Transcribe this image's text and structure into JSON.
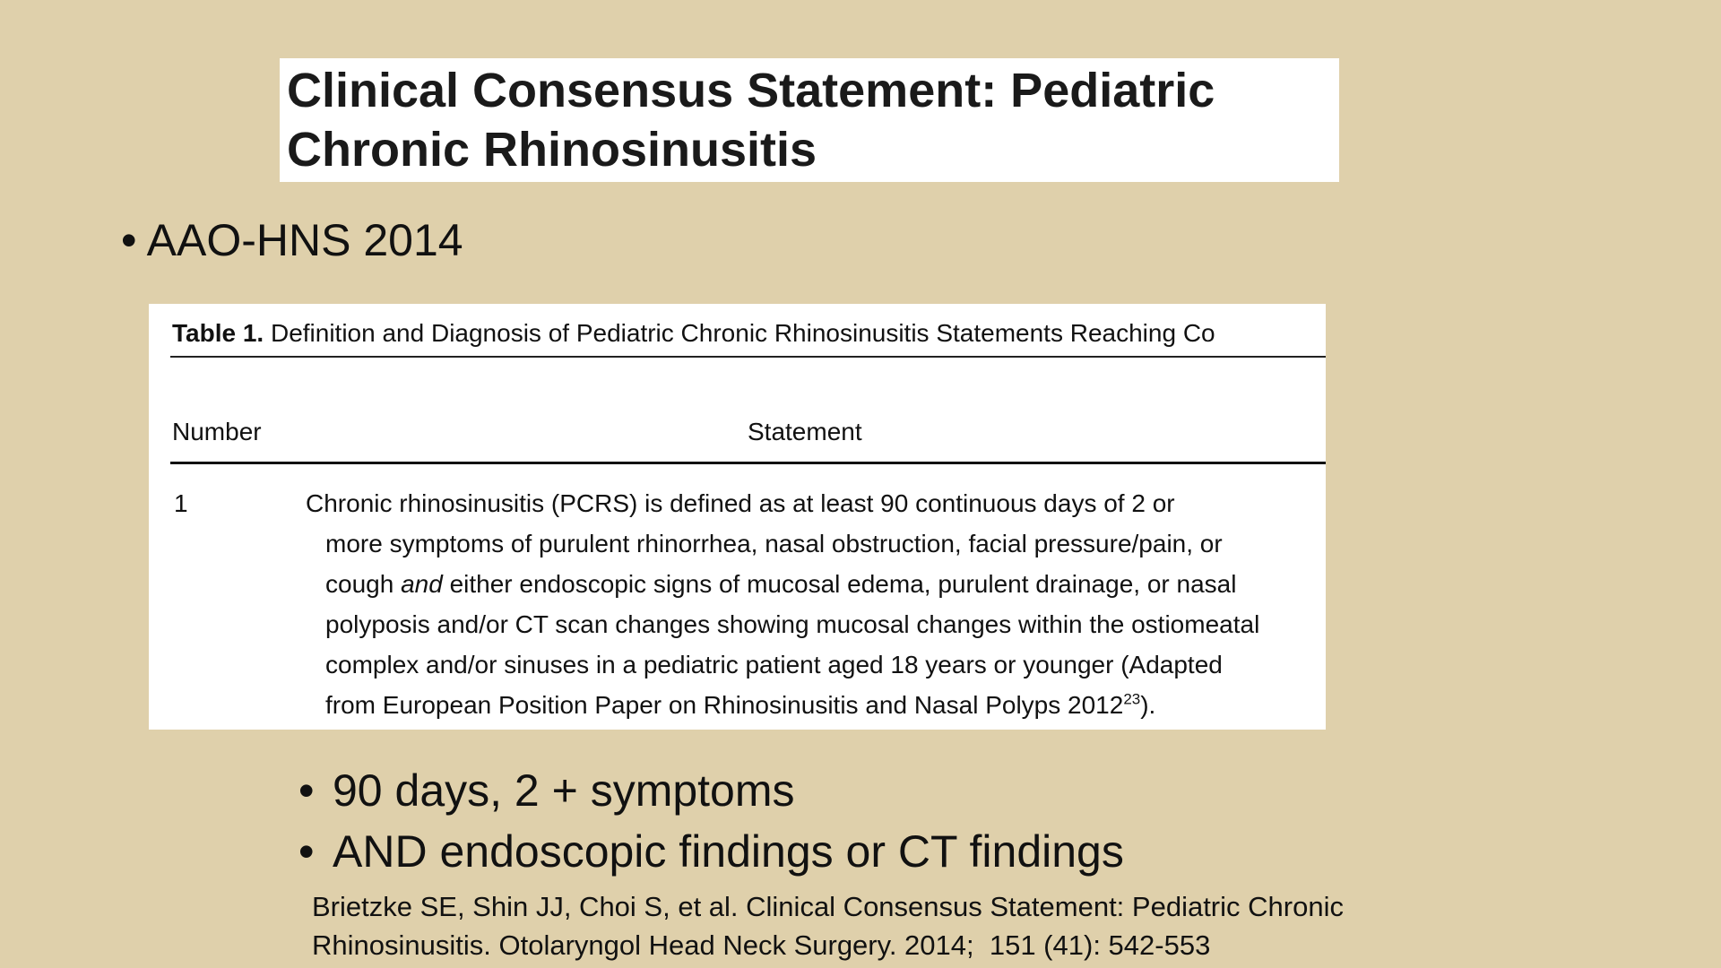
{
  "slide": {
    "title_lines": [
      "Clinical Consensus Statement: Pediatric",
      "Chronic Rhinosinusitis"
    ],
    "bullet_main": "AAO-HNS 2014",
    "table": {
      "caption_label": "Table 1.",
      "caption_text": " Definition and Diagnosis of Pediatric Chronic Rhinosinusitis Statements Reaching Co",
      "headers": [
        "Number",
        "Statement"
      ],
      "row_number": "1",
      "statement_lines": [
        "Chronic rhinosinusitis (PCRS) is defined as at least 90 continuous days of 2 or",
        "more symptoms of purulent rhinorrhea, nasal obstruction, facial pressure/pain, or",
        "cough",
        " and ",
        "either endoscopic signs of mucosal edema, purulent drainage, or nasal",
        "polyposis and/or CT scan changes showing mucosal changes within the ostiomeatal",
        "complex and/or sinuses in a pediatric patient aged 18 years or younger (Adapted",
        "from European Position Paper on Rhinosinusitis and Nasal Polyps 2012",
        "23",
        ")."
      ]
    },
    "sub_bullets": [
      "90 days, 2 + symptoms",
      "AND endoscopic findings or CT findings"
    ],
    "bullet_char": "•",
    "citation_lines": [
      "Brietzke SE, Shin JJ, Choi S, et al. Clinical Consensus Statement: Pediatric Chronic",
      "Rhinosinusitis. Otolaryngol Head Neck Surgery. 2014;  151 (41): 542-553"
    ],
    "colors": {
      "background": "#dfd0ab"
    }
  }
}
